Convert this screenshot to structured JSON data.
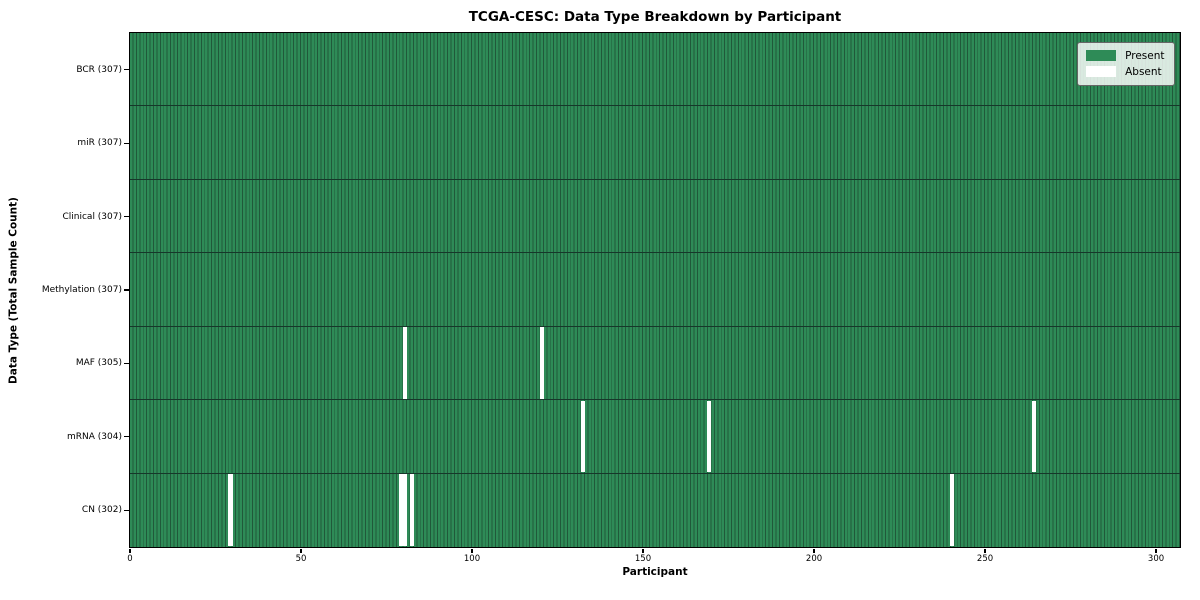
{
  "chart_data": {
    "type": "heatmap",
    "title": "TCGA-CESC: Data Type Breakdown by Participant",
    "xlabel": "Participant",
    "ylabel": "Data Type (Total Sample Count)",
    "x_ticks": [
      "0",
      "50",
      "100",
      "150",
      "200",
      "250",
      "300"
    ],
    "x_tick_values": [
      0,
      50,
      100,
      150,
      200,
      250,
      300
    ],
    "x_range": [
      0,
      307
    ],
    "n_participants": 307,
    "rows": [
      {
        "label": "BCR (307)",
        "data_type": "BCR",
        "total": 307,
        "absent": []
      },
      {
        "label": "miR (307)",
        "data_type": "miR",
        "total": 307,
        "absent": []
      },
      {
        "label": "Clinical (307)",
        "data_type": "Clinical",
        "total": 307,
        "absent": []
      },
      {
        "label": "Methylation (307)",
        "data_type": "Methylation",
        "total": 307,
        "absent": []
      },
      {
        "label": "MAF (305)",
        "data_type": "MAF",
        "total": 305,
        "absent": [
          80,
          120
        ]
      },
      {
        "label": "mRNA (304)",
        "data_type": "mRNA",
        "total": 304,
        "absent": [
          132,
          169,
          264
        ]
      },
      {
        "label": "CN (302)",
        "data_type": "CN",
        "total": 302,
        "absent": [
          29,
          79,
          80,
          82,
          240
        ]
      }
    ],
    "legend": [
      {
        "label": "Present",
        "color": "#2e8b57"
      },
      {
        "label": "Absent",
        "color": "#ffffff"
      }
    ],
    "legend_position": "upper right",
    "colors": {
      "present": "#2e8b57",
      "absent": "#ffffff",
      "cell_edge": "#20593a",
      "row_divider": "#16382a",
      "spine": "#000000",
      "background": "#ffffff"
    },
    "grid": "cell-edges"
  }
}
